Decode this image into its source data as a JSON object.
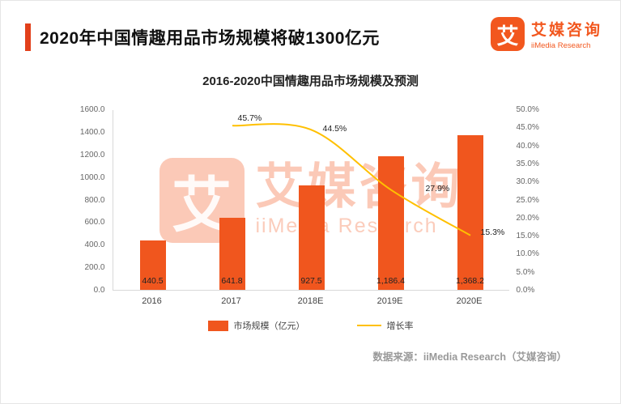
{
  "header": {
    "title": "2020年中国情趣用品市场规模将破1300亿元",
    "logo": {
      "glyph": "艾",
      "name_cn": "艾媒咨询",
      "name_en": "iiMedia Research"
    }
  },
  "chart_data": {
    "type": "bar",
    "title": "2016-2020中国情趣用品市场规模及预测",
    "categories": [
      "2016",
      "2017",
      "2018E",
      "2019E",
      "2020E"
    ],
    "series": [
      {
        "name": "市场规模（亿元）",
        "type": "bar",
        "axis": "left",
        "values": [
          440.5,
          641.8,
          927.5,
          1186.4,
          1368.2
        ],
        "labels": [
          "440.5",
          "641.8",
          "927.5",
          "1,186.4",
          "1,368.2"
        ],
        "color": "#F0561E"
      },
      {
        "name": "增长率",
        "type": "line",
        "axis": "right",
        "values": [
          null,
          45.7,
          44.5,
          27.9,
          15.3
        ],
        "labels": [
          "",
          "45.7%",
          "44.5%",
          "27.9%",
          "15.3%"
        ],
        "color": "#FFC000"
      }
    ],
    "left_axis": {
      "min": 0,
      "max": 1600,
      "ticks": [
        "0.0",
        "200.0",
        "400.0",
        "600.0",
        "800.0",
        "1000.0",
        "1200.0",
        "1400.0",
        "1600.0"
      ]
    },
    "right_axis": {
      "min": 0,
      "max": 50,
      "ticks": [
        "0.0%",
        "5.0%",
        "10.0%",
        "15.0%",
        "20.0%",
        "25.0%",
        "30.0%",
        "35.0%",
        "40.0%",
        "45.0%",
        "50.0%"
      ]
    },
    "legend": [
      {
        "label": "市场规模（亿元）",
        "swatch": "bar",
        "color": "#F0561E"
      },
      {
        "label": "增长率",
        "swatch": "line",
        "color": "#FFC000"
      }
    ],
    "grid": false,
    "legend_position": "bottom"
  },
  "watermark": {
    "glyph": "艾",
    "text_cn": "艾媒咨询",
    "text_en": "iiMedia Research"
  },
  "footer": {
    "source": "数据来源：iiMedia Research（艾媒咨询）"
  }
}
